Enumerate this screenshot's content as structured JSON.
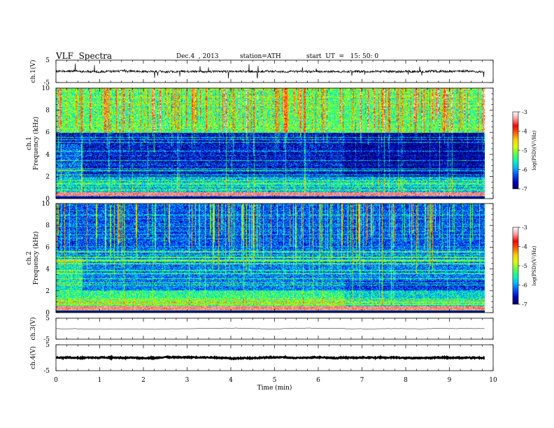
{
  "header": {
    "title": "VLF  Spectra",
    "date": "Dec.4  , 2013",
    "station": "station=ATH",
    "start": "start  UT  =   15: 50: 0"
  },
  "chart_data": [
    {
      "type": "line",
      "panel": "ch1-waveform",
      "ylabel": "ch.1(V)",
      "ylim": [
        -5,
        5
      ],
      "yticks": [
        "5",
        "-5"
      ],
      "baseline": 0.0,
      "noise": "moderate with frequent spikes"
    },
    {
      "type": "heatmap",
      "panel": "ch1-spectrogram",
      "ylabel": "ch.1\nFrequency  (kHz)",
      "ylabel_lines": [
        "ch.1",
        "Frequency  (kHz)"
      ],
      "ylim": [
        0,
        10
      ],
      "yticks": [
        "0",
        "2",
        "4",
        "6",
        "8",
        "10"
      ],
      "colorbar": {
        "label": "log(PSD)(V²/Hz)",
        "ticks": [
          "-3",
          "-4",
          "-5",
          "-6",
          "-7"
        ],
        "range": [
          -7,
          -3
        ]
      },
      "description_levels": {
        "above_6kHz": -5.3,
        "between_2_6kHz": -6.6,
        "below_2kHz": -5.8
      }
    },
    {
      "type": "heatmap",
      "panel": "ch2-spectrogram",
      "ylabel_lines": [
        "ch.2",
        "Frequency  (kHz)"
      ],
      "ylim": [
        0,
        10
      ],
      "yticks": [
        "0",
        "2",
        "4",
        "6",
        "8",
        "10"
      ],
      "colorbar": {
        "label": "log(PSD)(V²/Hz)",
        "ticks": [
          "-3",
          "-4",
          "-5",
          "-6",
          "-7"
        ],
        "range": [
          -7,
          -3
        ]
      },
      "description_levels": {
        "above_6kHz": -6.3,
        "between_2_6kHz": -6.1,
        "below_2kHz": -5.4
      }
    },
    {
      "type": "line",
      "panel": "ch3-waveform",
      "ylabel": "ch.3(V)",
      "ylim": [
        -5,
        5
      ],
      "yticks": [
        "5",
        "-5"
      ],
      "baseline": 0.0
    },
    {
      "type": "line",
      "panel": "ch4-waveform",
      "ylabel": "ch.4(V)",
      "ylim": [
        -5,
        5
      ],
      "yticks": [
        "5",
        "-5"
      ],
      "baseline": 0.0
    }
  ],
  "xaxis": {
    "label": "Time  (min)",
    "range": [
      0,
      10
    ],
    "data_end": 9.8,
    "ticks": [
      "0",
      "1",
      "2",
      "3",
      "4",
      "5",
      "6",
      "7",
      "8",
      "9",
      "10"
    ]
  },
  "colors": {
    "scale": [
      "#00005a",
      "#0000c8",
      "#0050ff",
      "#00b4ff",
      "#00ffb0",
      "#60ff40",
      "#d8ff00",
      "#ffd000",
      "#ff6000",
      "#ff0000",
      "#ff9a9a",
      "#ffffff"
    ]
  }
}
